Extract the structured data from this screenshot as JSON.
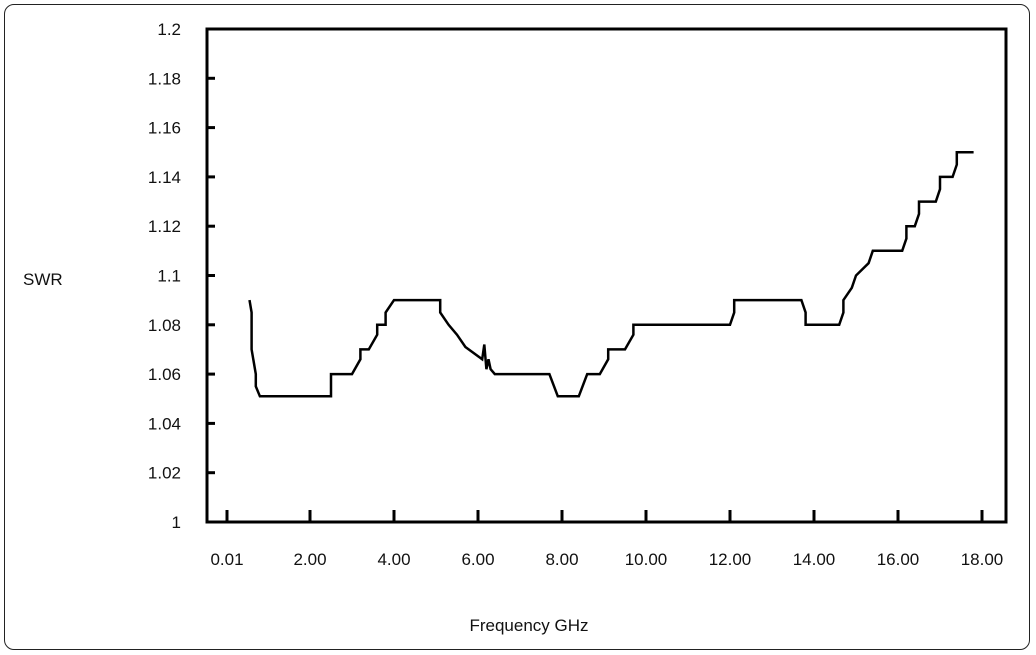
{
  "chart_data": {
    "type": "line",
    "title": "",
    "xlabel": "Frequency GHz",
    "ylabel": "SWR",
    "xlim": [
      0.01,
      18.5
    ],
    "ylim": [
      1,
      1.2
    ],
    "x_ticks": [
      0.01,
      2,
      4,
      6,
      8,
      10,
      12,
      14,
      16,
      18
    ],
    "x_tick_labels": [
      "0.01",
      "2.00",
      "4.00",
      "6.00",
      "8.00",
      "10.00",
      "12.00",
      "14.00",
      "16.00",
      "18.00"
    ],
    "y_ticks": [
      1,
      1.02,
      1.04,
      1.06,
      1.08,
      1.1,
      1.12,
      1.14,
      1.16,
      1.18,
      1.2
    ],
    "y_tick_labels": [
      "1",
      "1.02",
      "1.04",
      "1.06",
      "1.08",
      "1.1",
      "1.12",
      "1.14",
      "1.16",
      "1.18",
      "1.2"
    ],
    "grid": false,
    "line_color": "#000000",
    "series": [
      {
        "x": [
          0.55,
          0.6,
          0.6,
          0.7,
          0.7,
          0.8,
          0.8,
          2.5,
          2.5,
          2.8,
          3.0,
          3.2,
          3.2,
          3.4,
          3.6,
          3.6,
          3.8,
          3.8,
          4.0,
          5.1,
          5.1,
          5.3,
          5.5,
          5.7,
          5.7,
          6.1,
          6.15,
          6.2,
          6.25,
          6.3,
          6.4,
          6.4,
          7.7,
          7.9,
          8.4,
          8.6,
          8.6,
          8.9,
          9.1,
          9.1,
          9.5,
          9.7,
          9.7,
          12.0,
          12.1,
          12.1,
          13.7,
          13.8,
          13.8,
          14.6,
          14.7,
          14.7,
          14.9,
          15.0,
          15.0,
          15.3,
          15.4,
          15.4,
          16.1,
          16.2,
          16.2,
          16.4,
          16.5,
          16.5,
          16.9,
          17.0,
          17.0,
          17.3,
          17.4,
          17.4,
          17.8
        ],
        "y": [
          1.09,
          1.085,
          1.07,
          1.06,
          1.055,
          1.051,
          1.051,
          1.051,
          1.06,
          1.06,
          1.06,
          1.066,
          1.07,
          1.07,
          1.076,
          1.08,
          1.08,
          1.085,
          1.09,
          1.09,
          1.085,
          1.08,
          1.076,
          1.071,
          1.071,
          1.066,
          1.072,
          1.062,
          1.066,
          1.062,
          1.06,
          1.06,
          1.06,
          1.051,
          1.051,
          1.06,
          1.06,
          1.06,
          1.066,
          1.07,
          1.07,
          1.076,
          1.08,
          1.08,
          1.085,
          1.09,
          1.09,
          1.085,
          1.08,
          1.08,
          1.085,
          1.09,
          1.095,
          1.1,
          1.1,
          1.105,
          1.11,
          1.11,
          1.11,
          1.115,
          1.12,
          1.12,
          1.125,
          1.13,
          1.13,
          1.135,
          1.14,
          1.14,
          1.145,
          1.15,
          1.15
        ]
      }
    ]
  }
}
